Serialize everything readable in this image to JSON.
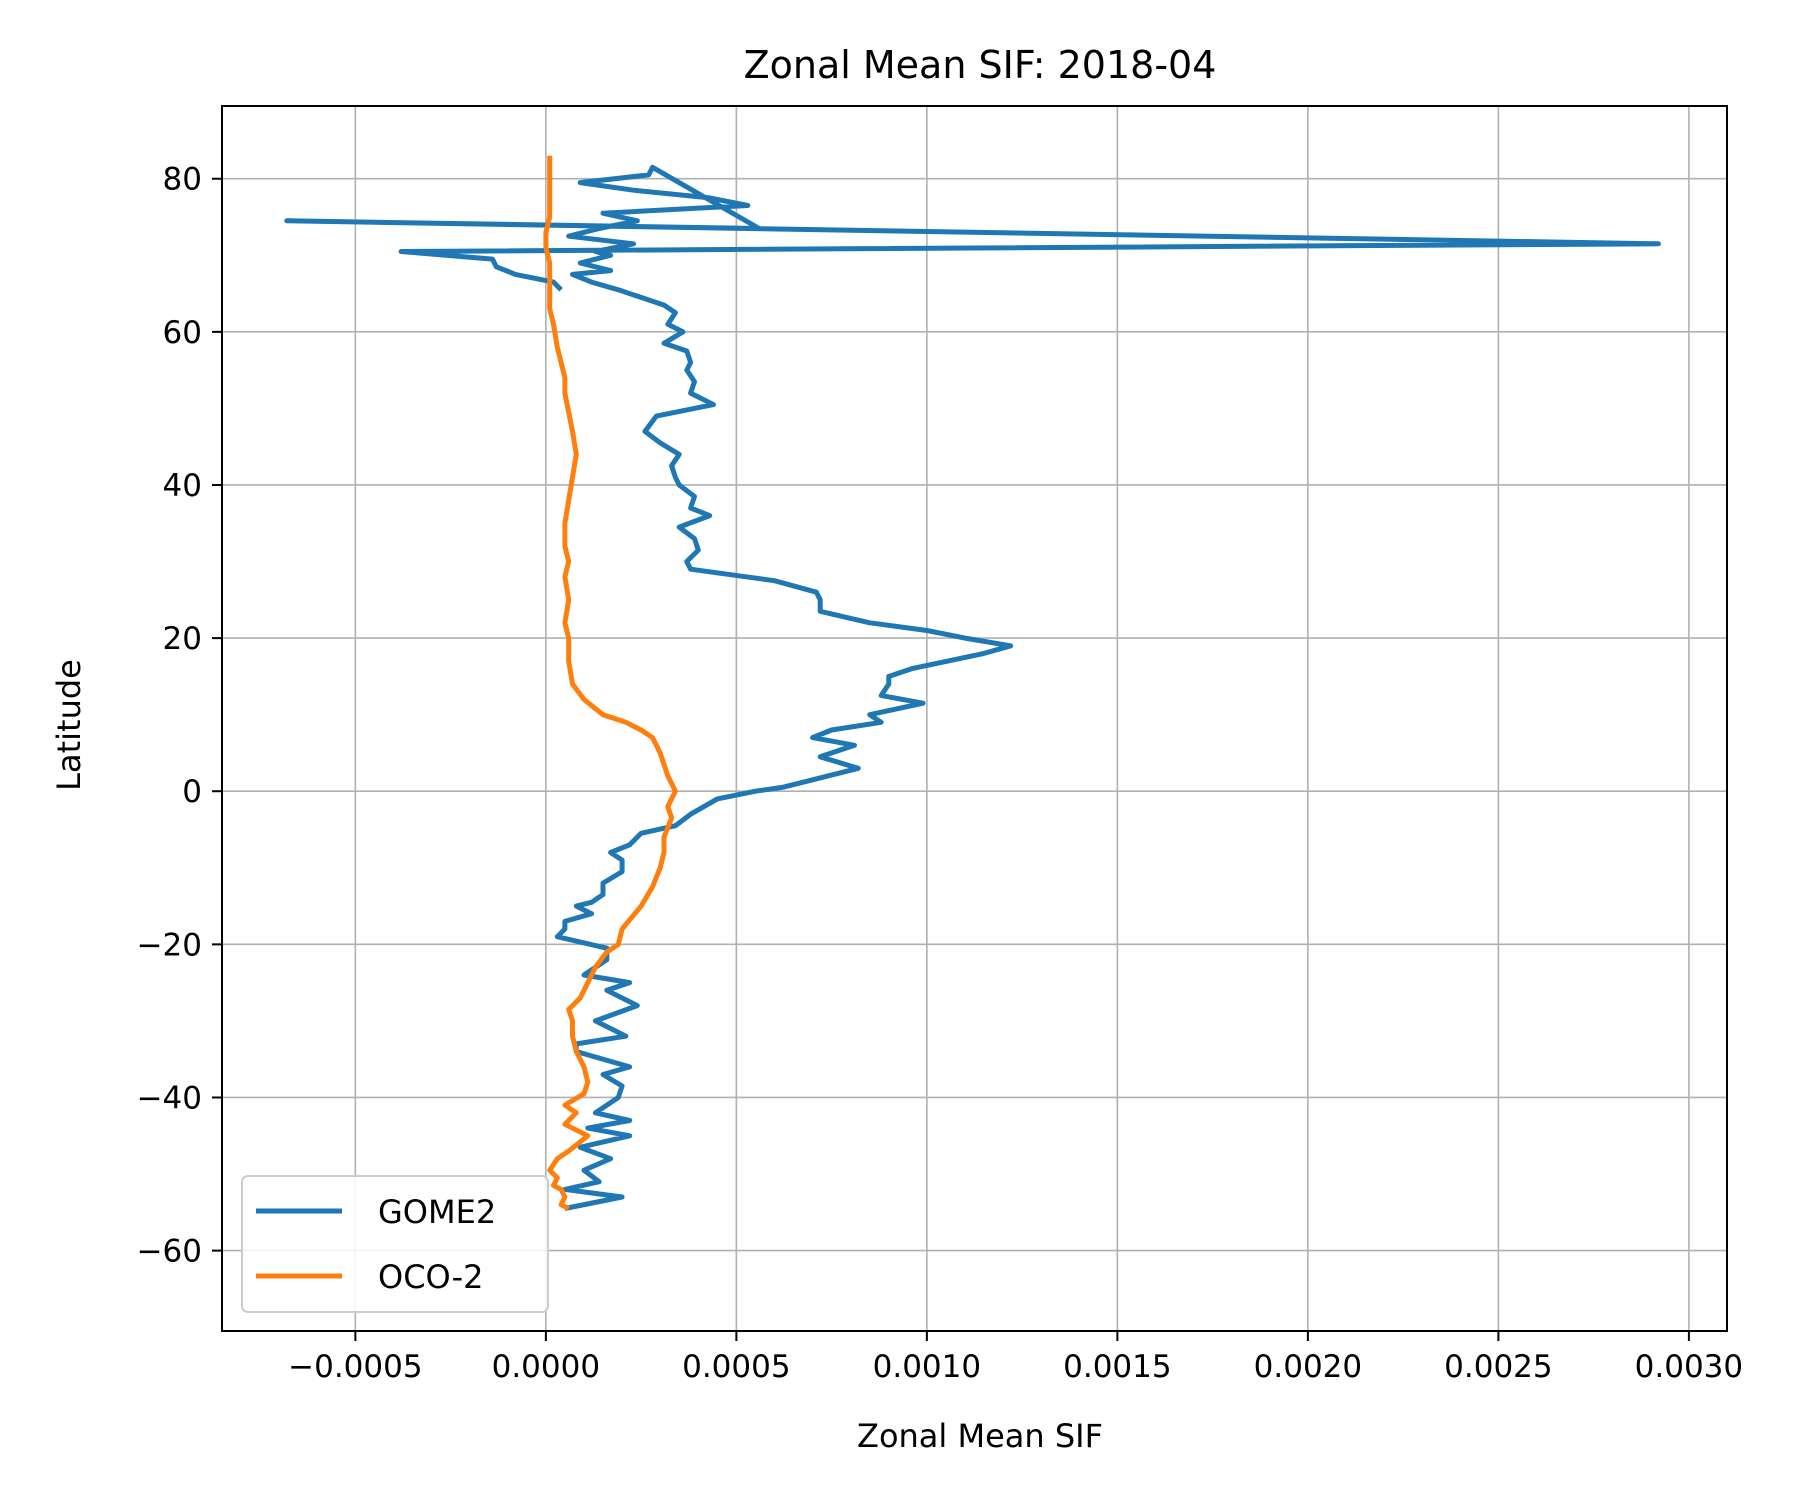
{
  "chart_data": {
    "type": "line",
    "title": "Zonal Mean SIF: 2018-04",
    "xlabel": "Zonal Mean SIF",
    "ylabel": "Latitude",
    "xlim": [
      -0.00085,
      0.0031
    ],
    "ylim": [
      -70.5,
      89.5
    ],
    "x_ticks": [
      -0.0005,
      0.0,
      0.0005,
      0.001,
      0.0015,
      0.002,
      0.0025,
      0.003
    ],
    "x_tick_labels": [
      "−0.0005",
      "0.0000",
      "0.0005",
      "0.0010",
      "0.0015",
      "0.0020",
      "0.0025",
      "0.0030"
    ],
    "y_ticks": [
      -60,
      -40,
      -20,
      0,
      20,
      40,
      60,
      80
    ],
    "y_tick_labels": [
      "−60",
      "−40",
      "−20",
      "0",
      "20",
      "40",
      "60",
      "80"
    ],
    "grid": true,
    "legend_position": "lower-left",
    "series": [
      {
        "name": "GOME2",
        "color": "#1f77b4",
        "x": [
          5e-05,
          0.0002,
          5e-05,
          0.00014,
          0.0001,
          0.00017,
          9e-05,
          0.00022,
          0.00011,
          0.00022,
          0.00013,
          0.00019,
          0.0002,
          0.00015,
          0.00022,
          8e-05,
          8e-05,
          0.00021,
          0.00013,
          0.00024,
          0.00016,
          0.00022,
          0.0001,
          0.00016,
          0.00016,
          3e-05,
          5e-05,
          5e-05,
          0.00012,
          8e-05,
          0.00012,
          0.00015,
          0.00015,
          0.0002,
          0.0002,
          0.00017,
          0.00022,
          0.00025,
          0.00034,
          0.00038,
          0.00045,
          0.00055,
          0.00062,
          0.0007,
          0.00082,
          0.00072,
          0.00081,
          0.0007,
          0.00075,
          0.00088,
          0.00085,
          0.00099,
          0.00088,
          0.0009,
          0.0009,
          0.00096,
          0.00115,
          0.00122,
          0.0011,
          0.001,
          0.00085,
          0.00072,
          0.00072,
          0.00071,
          0.0006,
          0.00038,
          0.00037,
          0.0004,
          0.00039,
          0.00035,
          0.00043,
          0.00038,
          0.00039,
          0.00035,
          0.00034,
          0.00033,
          0.00035,
          0.0003,
          0.00026,
          0.00029,
          0.00044,
          0.00038,
          0.00039,
          0.00037,
          0.00038,
          0.00037,
          0.00031,
          0.00036,
          0.00032,
          0.00034,
          0.00031,
          0.00025,
          0.00019,
          0.00012,
          7e-05,
          0.00017,
          0.00013,
          9e-05,
          0.00017,
          0.00013,
          0.00023,
          6e-05,
          0.00014,
          0.00024,
          0.00015,
          0.00053,
          0.00043,
          0.00023,
          9e-05,
          0.00027,
          0.00028,
          0.00056,
          -0.00068,
          0.00292,
          -0.00038,
          -0.00014,
          -0.00013,
          -8e-05,
          2e-05,
          4e-05
        ],
        "y": [
          -54.5,
          -53.0,
          -52.0,
          -51.0,
          -49.5,
          -48.0,
          -46.5,
          -45.0,
          -44.0,
          -43.0,
          -42.0,
          -40.0,
          -38.5,
          -37.0,
          -36.0,
          -34.0,
          -33.0,
          -32.0,
          -30.0,
          -28.0,
          -26.0,
          -25.0,
          -24.0,
          -22.0,
          -20.5,
          -19.0,
          -18.0,
          -17.0,
          -16.0,
          -15.0,
          -14.5,
          -13.5,
          -12.0,
          -10.5,
          -9.0,
          -8.0,
          -7.0,
          -5.5,
          -4.5,
          -3.0,
          -1.0,
          0.0,
          0.5,
          1.5,
          3.0,
          4.5,
          6.0,
          7.0,
          8.0,
          9.0,
          10.0,
          11.5,
          12.5,
          14.0,
          15.0,
          16.0,
          18.0,
          19.0,
          20.0,
          21.0,
          22.0,
          23.5,
          25.0,
          26.0,
          27.5,
          29.0,
          30.0,
          31.5,
          33.0,
          34.5,
          36.0,
          37.0,
          38.5,
          40.0,
          41.0,
          42.5,
          44.0,
          45.5,
          47.0,
          49.0,
          50.5,
          52.0,
          53.5,
          55.0,
          56.0,
          57.5,
          58.5,
          60.0,
          61.0,
          62.5,
          63.5,
          64.5,
          65.5,
          66.5,
          67.5,
          68.0,
          68.5,
          69.0,
          70.0,
          70.5,
          71.5,
          72.5,
          73.5,
          74.5,
          75.5,
          76.5,
          77.5,
          78.5,
          79.5,
          80.5,
          81.5,
          73.5,
          74.5,
          71.5,
          70.5,
          69.5,
          68.5,
          67.5,
          66.5,
          65.5
        ],
        "_dummy": 0
      },
      {
        "name": "OCO-2",
        "color": "#ff7f0e",
        "x": [
          6e-05,
          4e-05,
          5e-05,
          4e-05,
          2e-05,
          3e-05,
          1e-05,
          3e-05,
          6e-05,
          0.00011,
          5e-05,
          8e-05,
          5e-05,
          0.0001,
          0.00011,
          0.0001,
          8e-05,
          7e-05,
          7e-05,
          6e-05,
          9e-05,
          0.00011,
          0.00013,
          0.00016,
          0.00019,
          0.0002,
          0.00025,
          0.00028,
          0.0003,
          0.00031,
          0.00031,
          0.00033,
          0.00032,
          0.00034,
          0.00032,
          0.00031,
          0.0003,
          0.00029,
          0.00028,
          0.00025,
          0.00021,
          0.00015,
          0.0001,
          7e-05,
          6e-05,
          6e-05,
          5e-05,
          6e-05,
          5e-05,
          6e-05,
          5e-05,
          5e-05,
          6e-05,
          7e-05,
          8e-05,
          7e-05,
          6e-05,
          5e-05,
          5e-05,
          4e-05,
          3e-05,
          2e-05,
          1e-05,
          1e-05,
          1e-05,
          1e-05,
          0.0,
          0.0,
          1e-05,
          1e-05,
          1e-05,
          1e-05,
          1e-05,
          1e-05
        ],
        "y": [
          -54.5,
          -54.0,
          -53.0,
          -52.0,
          -51.5,
          -50.5,
          -49.5,
          -48.0,
          -47.0,
          -45.0,
          -43.5,
          -42.0,
          -41.0,
          -39.5,
          -38.0,
          -36.0,
          -34.0,
          -32.0,
          -30.0,
          -28.5,
          -27.0,
          -25.0,
          -23.0,
          -21.0,
          -20.0,
          -18.0,
          -15.0,
          -12.5,
          -10.0,
          -8.0,
          -6.0,
          -3.5,
          -2.0,
          0.0,
          2.0,
          3.5,
          5.0,
          6.0,
          7.0,
          8.0,
          9.0,
          10.0,
          12.0,
          14.0,
          17.0,
          20.0,
          22.0,
          25.0,
          28.0,
          30.0,
          32.0,
          35.0,
          38.0,
          41.0,
          44.0,
          47.0,
          49.5,
          52.0,
          54.0,
          56.0,
          58.0,
          61.0,
          63.0,
          65.0,
          67.0,
          69.0,
          71.0,
          73.0,
          75.0,
          77.0,
          79.0,
          80.0,
          81.5,
          83.0
        ],
        "_dummy": 0
      }
    ]
  }
}
